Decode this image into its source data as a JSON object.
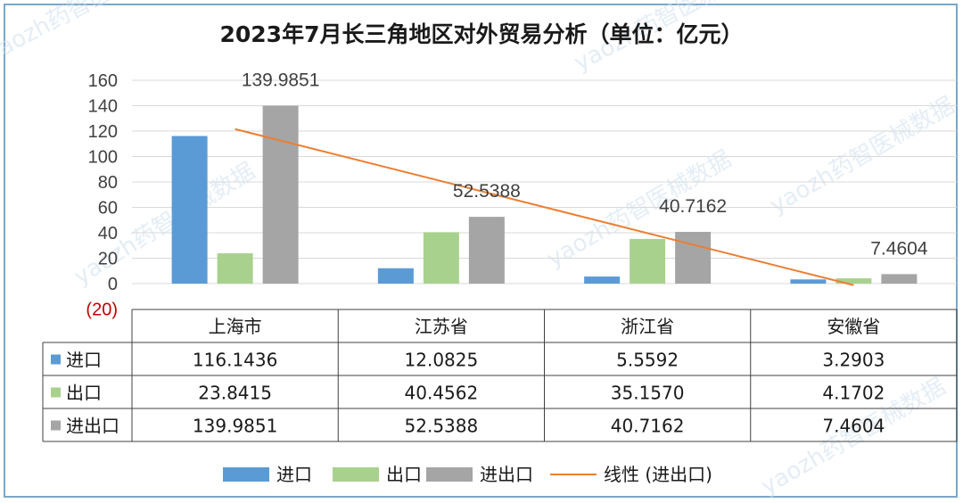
{
  "chart_data": {
    "type": "bar",
    "title": "2023年7月长三角地区对外贸易分析（单位：亿元）",
    "categories": [
      "上海市",
      "江苏省",
      "浙江省",
      "安徽省"
    ],
    "series": [
      {
        "name": "进口",
        "values": [
          116.1436,
          12.0825,
          5.5592,
          3.2903
        ],
        "color": "#5b9bd5"
      },
      {
        "name": "出口",
        "values": [
          23.8415,
          40.4562,
          35.157,
          4.1702
        ],
        "color": "#a9d18e"
      },
      {
        "name": "进出口",
        "values": [
          139.9851,
          52.5388,
          40.7162,
          7.4604
        ],
        "color": "#a5a5a5"
      }
    ],
    "trendline": {
      "name": "线性 (进出口)",
      "of_series": "进出口",
      "color": "#ed7d31"
    },
    "data_labels": {
      "series": "进出口",
      "texts": [
        "139.9851",
        "52.5388",
        "40.7162",
        "7.4604"
      ]
    },
    "table_rows": [
      {
        "name": "进口",
        "cells": [
          "116.1436",
          "12.0825",
          "5.5592",
          "3.2903"
        ]
      },
      {
        "name": "出口",
        "cells": [
          "23.8415",
          "40.4562",
          "35.1570",
          "4.1702"
        ]
      },
      {
        "name": "进出口",
        "cells": [
          "139.9851",
          "52.5388",
          "40.7162",
          "7.4604"
        ]
      }
    ],
    "ylim": [
      -20,
      160
    ],
    "yticks": [
      "160",
      "140",
      "120",
      "100",
      "80",
      "60",
      "40",
      "20",
      "0",
      "(20)"
    ],
    "grid": true,
    "legend_position": "bottom",
    "watermark": "yaozh药智医械数据"
  }
}
